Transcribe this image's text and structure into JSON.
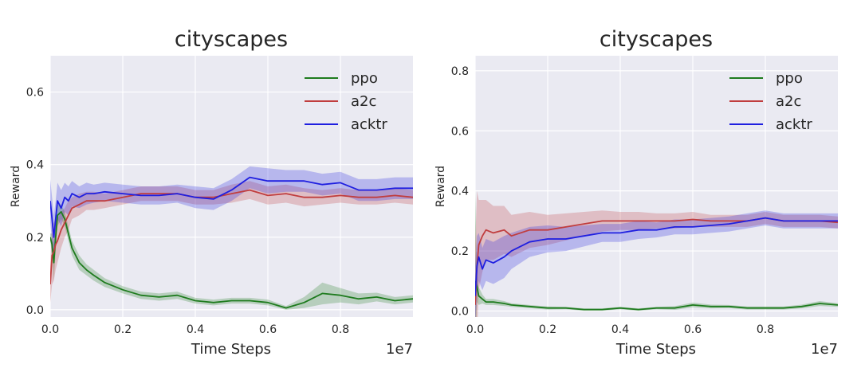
{
  "chart_data": [
    {
      "type": "line",
      "title": "cityscapes",
      "xlabel": "Time Steps",
      "ylabel": "Reward",
      "x_offset_label": "1e7",
      "xlim": [
        0,
        1.0
      ],
      "ylim": [
        -0.02,
        0.7
      ],
      "xticks": [
        "0.0",
        "0.2",
        "0.4",
        "0.6",
        "0.8"
      ],
      "yticks": [
        "0.0",
        "0.2",
        "0.4",
        "0.6"
      ],
      "grid": true,
      "legend_position": "upper-right",
      "series": [
        {
          "name": "ppo",
          "color": "#1e7b1e",
          "x": [
            0,
            0.005,
            0.01,
            0.015,
            0.02,
            0.03,
            0.04,
            0.05,
            0.06,
            0.08,
            0.1,
            0.12,
            0.15,
            0.2,
            0.25,
            0.3,
            0.35,
            0.4,
            0.45,
            0.5,
            0.55,
            0.6,
            0.65,
            0.7,
            0.75,
            0.8,
            0.85,
            0.9,
            0.95,
            1.0
          ],
          "y": [
            0.2,
            0.18,
            0.13,
            0.2,
            0.26,
            0.27,
            0.25,
            0.21,
            0.17,
            0.13,
            0.11,
            0.095,
            0.075,
            0.055,
            0.04,
            0.035,
            0.04,
            0.025,
            0.02,
            0.025,
            0.025,
            0.02,
            0.005,
            0.02,
            0.045,
            0.04,
            0.03,
            0.035,
            0.025,
            0.03
          ],
          "band": [
            0.01,
            0.03,
            0.05,
            0.04,
            0.03,
            0.02,
            0.02,
            0.02,
            0.02,
            0.02,
            0.015,
            0.015,
            0.012,
            0.01,
            0.01,
            0.01,
            0.01,
            0.008,
            0.008,
            0.008,
            0.008,
            0.008,
            0.005,
            0.015,
            0.03,
            0.02,
            0.015,
            0.012,
            0.01,
            0.01
          ]
        },
        {
          "name": "a2c",
          "color": "#c03d3e",
          "x": [
            0,
            0.005,
            0.01,
            0.015,
            0.02,
            0.03,
            0.04,
            0.05,
            0.06,
            0.08,
            0.1,
            0.12,
            0.15,
            0.2,
            0.25,
            0.3,
            0.35,
            0.4,
            0.45,
            0.5,
            0.55,
            0.6,
            0.65,
            0.7,
            0.75,
            0.8,
            0.85,
            0.9,
            0.95,
            1.0
          ],
          "y": [
            0.07,
            0.15,
            0.16,
            0.18,
            0.19,
            0.22,
            0.24,
            0.26,
            0.28,
            0.29,
            0.3,
            0.3,
            0.3,
            0.31,
            0.32,
            0.32,
            0.32,
            0.31,
            0.31,
            0.32,
            0.33,
            0.315,
            0.32,
            0.31,
            0.31,
            0.315,
            0.31,
            0.31,
            0.315,
            0.31
          ],
          "band": [
            0.05,
            0.08,
            0.08,
            0.07,
            0.06,
            0.05,
            0.04,
            0.04,
            0.03,
            0.03,
            0.025,
            0.025,
            0.02,
            0.02,
            0.02,
            0.02,
            0.02,
            0.02,
            0.02,
            0.025,
            0.025,
            0.025,
            0.025,
            0.025,
            0.02,
            0.02,
            0.02,
            0.02,
            0.02,
            0.02
          ]
        },
        {
          "name": "acktr",
          "color": "#1f1fe0",
          "x": [
            0,
            0.005,
            0.01,
            0.015,
            0.02,
            0.03,
            0.04,
            0.05,
            0.06,
            0.08,
            0.1,
            0.12,
            0.15,
            0.2,
            0.25,
            0.3,
            0.35,
            0.4,
            0.45,
            0.5,
            0.55,
            0.6,
            0.65,
            0.7,
            0.75,
            0.8,
            0.85,
            0.9,
            0.95,
            1.0
          ],
          "y": [
            0.3,
            0.25,
            0.2,
            0.25,
            0.3,
            0.28,
            0.31,
            0.3,
            0.32,
            0.31,
            0.32,
            0.32,
            0.325,
            0.32,
            0.315,
            0.315,
            0.32,
            0.31,
            0.305,
            0.33,
            0.365,
            0.355,
            0.355,
            0.355,
            0.345,
            0.35,
            0.33,
            0.33,
            0.335,
            0.335
          ],
          "band": [
            0.06,
            0.06,
            0.06,
            0.05,
            0.05,
            0.05,
            0.04,
            0.04,
            0.035,
            0.03,
            0.03,
            0.025,
            0.025,
            0.025,
            0.025,
            0.025,
            0.025,
            0.03,
            0.03,
            0.03,
            0.03,
            0.035,
            0.03,
            0.03,
            0.03,
            0.03,
            0.03,
            0.03,
            0.03,
            0.03
          ]
        }
      ]
    },
    {
      "type": "line",
      "title": "cityscapes",
      "xlabel": "Time Steps",
      "ylabel": "Reward",
      "x_offset_label": "1e7",
      "xlim": [
        0,
        1.0
      ],
      "ylim": [
        -0.02,
        0.85
      ],
      "xticks": [
        "0.0",
        "0.2",
        "0.4",
        "0.6",
        "0.8"
      ],
      "yticks": [
        "0.0",
        "0.2",
        "0.4",
        "0.6",
        "0.8"
      ],
      "grid": true,
      "legend_position": "upper-right",
      "series": [
        {
          "name": "ppo",
          "color": "#1e7b1e",
          "x": [
            0,
            0.005,
            0.01,
            0.02,
            0.03,
            0.05,
            0.08,
            0.1,
            0.15,
            0.2,
            0.25,
            0.3,
            0.35,
            0.4,
            0.45,
            0.5,
            0.55,
            0.6,
            0.65,
            0.7,
            0.75,
            0.8,
            0.85,
            0.9,
            0.95,
            1.0
          ],
          "y": [
            0.1,
            0.08,
            0.05,
            0.04,
            0.03,
            0.03,
            0.025,
            0.02,
            0.015,
            0.01,
            0.01,
            0.005,
            0.005,
            0.01,
            0.005,
            0.01,
            0.01,
            0.02,
            0.015,
            0.015,
            0.01,
            0.01,
            0.01,
            0.015,
            0.025,
            0.02
          ],
          "band": [
            0.3,
            0.05,
            0.03,
            0.015,
            0.01,
            0.01,
            0.008,
            0.006,
            0.005,
            0.005,
            0.004,
            0.004,
            0.004,
            0.004,
            0.004,
            0.004,
            0.006,
            0.008,
            0.006,
            0.005,
            0.005,
            0.005,
            0.005,
            0.006,
            0.008,
            0.006
          ]
        },
        {
          "name": "a2c",
          "color": "#c03d3e",
          "x": [
            0,
            0.005,
            0.01,
            0.02,
            0.03,
            0.05,
            0.08,
            0.1,
            0.15,
            0.2,
            0.25,
            0.3,
            0.35,
            0.4,
            0.45,
            0.5,
            0.55,
            0.6,
            0.65,
            0.7,
            0.75,
            0.8,
            0.85,
            0.9,
            0.95,
            1.0
          ],
          "y": [
            0.02,
            0.15,
            0.22,
            0.25,
            0.27,
            0.26,
            0.27,
            0.25,
            0.27,
            0.27,
            0.28,
            0.29,
            0.3,
            0.3,
            0.3,
            0.3,
            0.3,
            0.305,
            0.3,
            0.3,
            0.3,
            0.31,
            0.3,
            0.3,
            0.3,
            0.295
          ],
          "band": [
            0.2,
            0.25,
            0.15,
            0.12,
            0.1,
            0.09,
            0.08,
            0.07,
            0.06,
            0.05,
            0.045,
            0.04,
            0.035,
            0.03,
            0.03,
            0.025,
            0.025,
            0.025,
            0.02,
            0.02,
            0.02,
            0.02,
            0.02,
            0.02,
            0.02,
            0.02
          ]
        },
        {
          "name": "acktr",
          "color": "#1f1fe0",
          "x": [
            0,
            0.005,
            0.01,
            0.02,
            0.03,
            0.05,
            0.08,
            0.1,
            0.15,
            0.2,
            0.25,
            0.3,
            0.35,
            0.4,
            0.45,
            0.5,
            0.55,
            0.6,
            0.65,
            0.7,
            0.75,
            0.8,
            0.85,
            0.9,
            0.95,
            1.0
          ],
          "y": [
            0.05,
            0.15,
            0.18,
            0.14,
            0.17,
            0.16,
            0.18,
            0.2,
            0.23,
            0.24,
            0.24,
            0.25,
            0.26,
            0.26,
            0.27,
            0.27,
            0.28,
            0.28,
            0.285,
            0.29,
            0.3,
            0.31,
            0.3,
            0.3,
            0.3,
            0.3
          ],
          "band": [
            0.1,
            0.1,
            0.08,
            0.07,
            0.07,
            0.07,
            0.07,
            0.06,
            0.05,
            0.045,
            0.04,
            0.035,
            0.03,
            0.03,
            0.03,
            0.025,
            0.025,
            0.025,
            0.025,
            0.025,
            0.025,
            0.025,
            0.025,
            0.025,
            0.025,
            0.025
          ]
        }
      ]
    }
  ]
}
